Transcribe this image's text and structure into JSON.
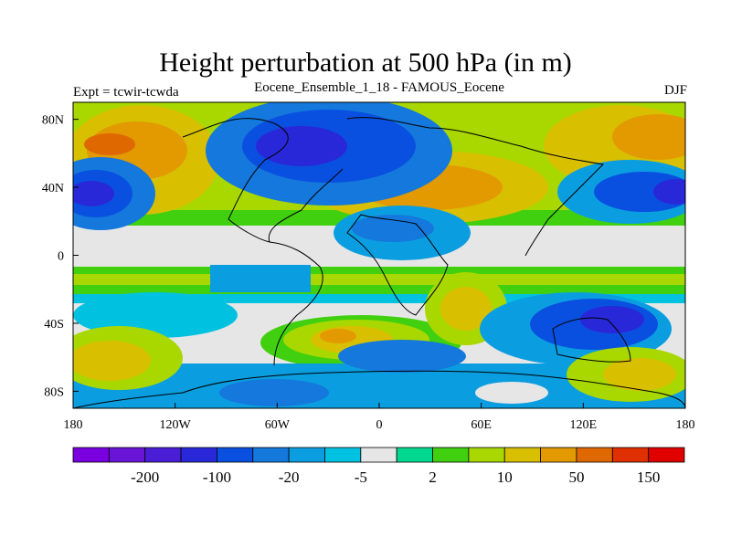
{
  "title": "Height perturbation at 500 hPa (in m)",
  "left_label": "Expt = tcwir-tcwda",
  "center_label": "Eocene_Ensemble_1_18 - FAMOUS_Eocene",
  "right_label": "DJF",
  "lat_ticks": [
    {
      "value": 80,
      "label": "80N"
    },
    {
      "value": 40,
      "label": "40N"
    },
    {
      "value": 0,
      "label": "0"
    },
    {
      "value": -40,
      "label": "40S"
    },
    {
      "value": -80,
      "label": "80S"
    }
  ],
  "lon_ticks": [
    {
      "value": -180,
      "label": "180"
    },
    {
      "value": -120,
      "label": "120W"
    },
    {
      "value": -60,
      "label": "60W"
    },
    {
      "value": 0,
      "label": "0"
    },
    {
      "value": 60,
      "label": "60E"
    },
    {
      "value": 120,
      "label": "120E"
    },
    {
      "value": 180,
      "label": "180"
    }
  ],
  "colorbar": {
    "colors": [
      "#7a00e0",
      "#6a14d8",
      "#4a1ed6",
      "#2828d8",
      "#0a50e0",
      "#1478dc",
      "#0a9ee0",
      "#00c2e0",
      "#e6e6e6",
      "#00d890",
      "#40d010",
      "#a8d800",
      "#d8c000",
      "#e29a00",
      "#e06800",
      "#e03000",
      "#e00000"
    ],
    "labels": [
      {
        "after_box": 2,
        "text": "-200"
      },
      {
        "after_box": 4,
        "text": "-100"
      },
      {
        "after_box": 6,
        "text": "-20"
      },
      {
        "after_box": 8,
        "text": "-5"
      },
      {
        "after_box": 10,
        "text": "2"
      },
      {
        "after_box": 12,
        "text": "10"
      },
      {
        "after_box": 14,
        "text": "50"
      },
      {
        "after_box": 16,
        "text": "150"
      }
    ]
  }
}
